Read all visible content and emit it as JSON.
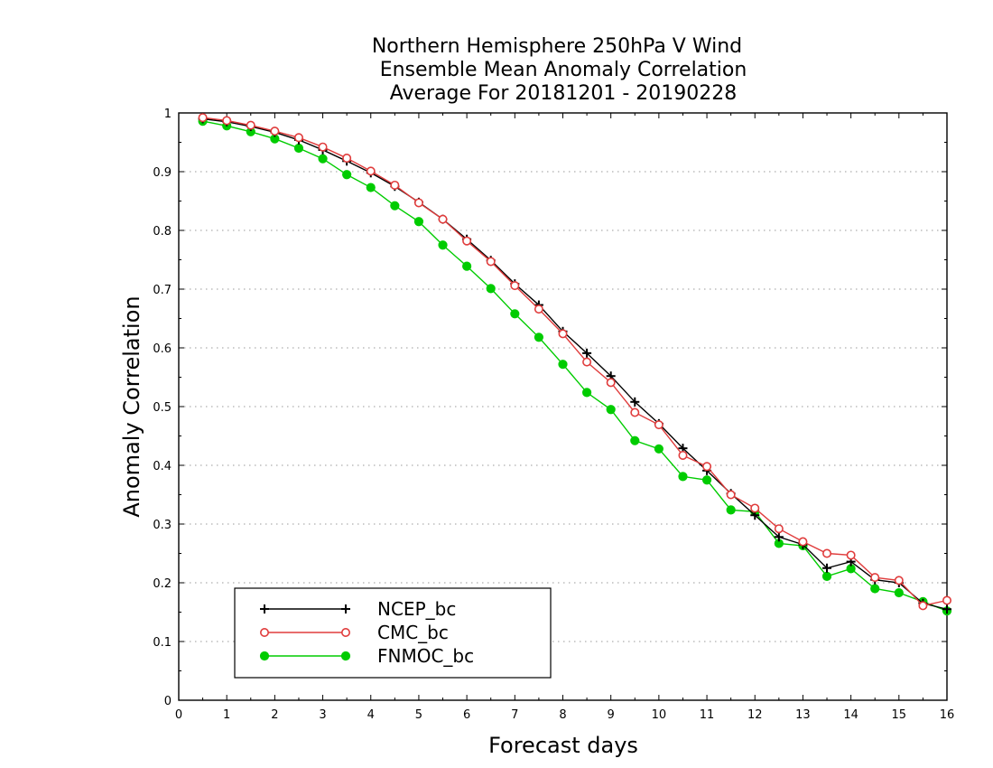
{
  "chart_data": {
    "type": "line",
    "title_lines": [
      "Northern Hemisphere 250hPa V Wind",
      "Ensemble Mean Anomaly Correlation",
      "Average For 20181201 - 20190228"
    ],
    "xlabel": "Forecast days",
    "ylabel": "Anomaly Correlation",
    "xlim": [
      0,
      16
    ],
    "ylim": [
      0,
      1
    ],
    "x_ticks": [
      0,
      1,
      2,
      3,
      4,
      5,
      6,
      7,
      8,
      9,
      10,
      11,
      12,
      13,
      14,
      15,
      16
    ],
    "y_ticks": [
      0,
      0.1,
      0.2,
      0.3,
      0.4,
      0.5,
      0.6,
      0.7,
      0.8,
      0.9,
      1
    ],
    "y_tick_labels": [
      "0",
      "0.1",
      "0.2",
      "0.3",
      "0.4",
      "0.5",
      "0.6",
      "0.7",
      "0.8",
      "0.9",
      "1"
    ],
    "grid": "horizontal dotted",
    "legend_position": "bottom-left",
    "x": [
      0.5,
      1,
      1.5,
      2,
      2.5,
      3,
      3.5,
      4,
      4.5,
      5,
      5.5,
      6,
      6.5,
      7,
      7.5,
      8,
      8.5,
      9,
      9.5,
      10,
      10.5,
      11,
      11.5,
      12,
      12.5,
      13,
      13.5,
      14,
      14.5,
      15,
      15.5,
      16
    ],
    "series": [
      {
        "name": "NCEP_bc",
        "color": "#000000",
        "marker": "plus",
        "values": [
          0.99,
          0.985,
          0.977,
          0.967,
          0.954,
          0.937,
          0.918,
          0.898,
          0.875,
          0.848,
          0.819,
          0.785,
          0.749,
          0.709,
          0.673,
          0.628,
          0.591,
          0.552,
          0.508,
          0.471,
          0.429,
          0.391,
          0.352,
          0.315,
          0.278,
          0.265,
          0.225,
          0.236,
          0.205,
          0.2,
          0.165,
          0.155
        ]
      },
      {
        "name": "CMC_bc",
        "color": "#e03c3c",
        "marker": "open-circle",
        "values": [
          0.992,
          0.987,
          0.979,
          0.969,
          0.958,
          0.942,
          0.923,
          0.901,
          0.877,
          0.847,
          0.819,
          0.782,
          0.747,
          0.706,
          0.666,
          0.624,
          0.576,
          0.541,
          0.49,
          0.469,
          0.417,
          0.398,
          0.35,
          0.327,
          0.292,
          0.27,
          0.25,
          0.247,
          0.209,
          0.204,
          0.161,
          0.17
        ]
      },
      {
        "name": "FNMOC_bc",
        "color": "#00cc00",
        "marker": "filled-circle",
        "values": [
          0.986,
          0.978,
          0.968,
          0.956,
          0.94,
          0.922,
          0.895,
          0.873,
          0.842,
          0.815,
          0.775,
          0.739,
          0.701,
          0.658,
          0.618,
          0.572,
          0.524,
          0.495,
          0.442,
          0.428,
          0.381,
          0.375,
          0.324,
          0.321,
          0.267,
          0.263,
          0.211,
          0.224,
          0.19,
          0.183,
          0.168,
          0.152
        ]
      }
    ]
  }
}
